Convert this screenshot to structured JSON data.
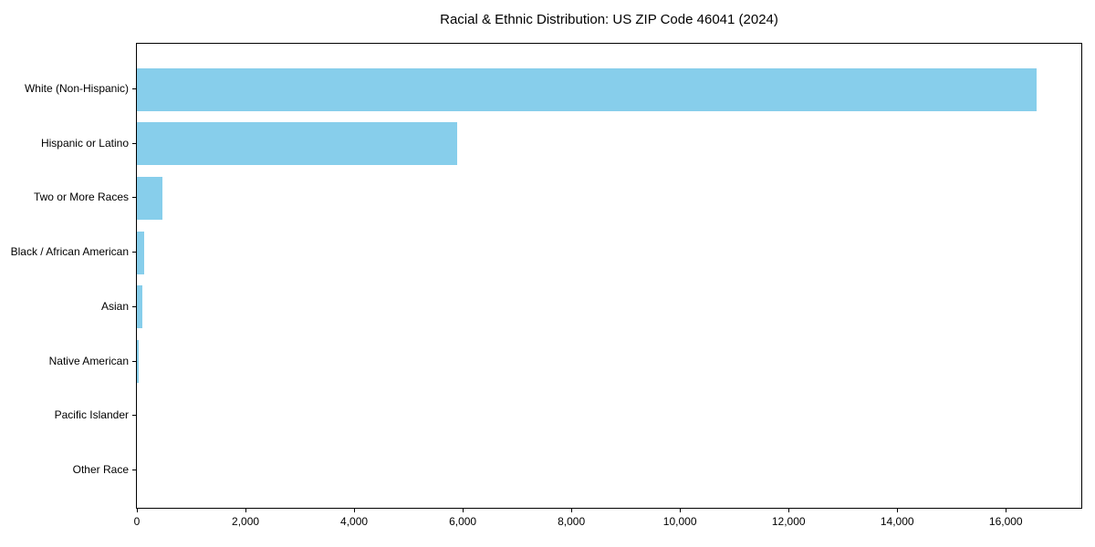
{
  "figure": {
    "background": "#ffffff"
  },
  "chart_data": {
    "type": "bar",
    "orientation": "horizontal",
    "title": "Racial & Ethnic Distribution: US ZIP Code 46041 (2024)",
    "xlabel": "",
    "ylabel": "",
    "categories": [
      "White (Non-Hispanic)",
      "Hispanic or Latino",
      "Two or More Races",
      "Black / African American",
      "Asian",
      "Native American",
      "Pacific Islander",
      "Other Race"
    ],
    "values": [
      16560,
      5900,
      465,
      135,
      100,
      30,
      0,
      0
    ],
    "xlim": [
      0,
      17390
    ],
    "xticks": [
      0,
      2000,
      4000,
      6000,
      8000,
      10000,
      12000,
      14000,
      16000
    ],
    "xtick_labels": [
      "0",
      "2,000",
      "4,000",
      "6,000",
      "8,000",
      "10,000",
      "12,000",
      "14,000",
      "16,000"
    ],
    "bar_color": "#87CEEB",
    "axis_color": "#000000",
    "text_color": "#000000",
    "grid": false,
    "legend": null
  }
}
